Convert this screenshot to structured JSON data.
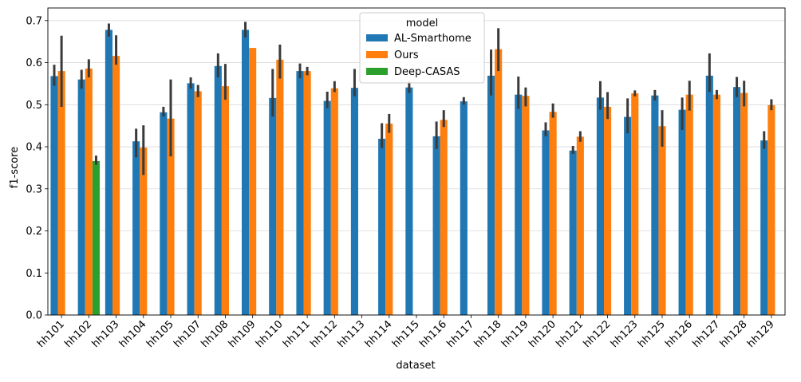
{
  "chart_data": {
    "type": "bar",
    "xlabel": "dataset",
    "ylabel": "f1-score",
    "ylim": [
      0,
      0.73
    ],
    "yticks": [
      "0.0",
      "0.1",
      "0.2",
      "0.3",
      "0.4",
      "0.5",
      "0.6",
      "0.7"
    ],
    "grid": "horizontal",
    "legend_title": "model",
    "legend_position": "top-center",
    "categories": [
      "hh101",
      "hh102",
      "hh103",
      "hh104",
      "hh105",
      "hh107",
      "hh108",
      "hh109",
      "hh110",
      "hh111",
      "hh112",
      "hh113",
      "hh114",
      "hh115",
      "hh116",
      "hh117",
      "hh118",
      "hh119",
      "hh120",
      "hh121",
      "hh122",
      "hh123",
      "hh125",
      "hh126",
      "hh127",
      "hh128",
      "hh129"
    ],
    "series": [
      {
        "name": "AL-Smarthome",
        "color": "#1f77b4",
        "values": [
          0.568,
          0.56,
          0.678,
          0.413,
          0.482,
          0.551,
          0.592,
          0.678,
          0.516,
          0.58,
          0.509,
          0.54,
          0.419,
          0.541,
          0.425,
          0.508,
          0.569,
          0.524,
          0.439,
          0.391,
          0.517,
          0.471,
          0.522,
          0.488,
          0.569,
          0.542,
          0.415
        ],
        "ci_low": [
          0.545,
          0.538,
          0.662,
          0.375,
          0.472,
          0.538,
          0.565,
          0.66,
          0.472,
          0.563,
          0.492,
          0.52,
          0.397,
          0.528,
          0.395,
          0.5,
          0.522,
          0.49,
          0.425,
          0.383,
          0.488,
          0.432,
          0.51,
          0.44,
          0.53,
          0.518,
          0.395
        ],
        "ci_high": [
          0.595,
          0.583,
          0.693,
          0.443,
          0.495,
          0.565,
          0.622,
          0.697,
          0.585,
          0.598,
          0.531,
          0.585,
          0.456,
          0.555,
          0.46,
          0.518,
          0.631,
          0.567,
          0.458,
          0.402,
          0.556,
          0.515,
          0.535,
          0.517,
          0.622,
          0.566,
          0.437
        ]
      },
      {
        "name": "Ours",
        "color": "#ff7f0e",
        "values": [
          0.58,
          0.586,
          0.616,
          0.398,
          0.467,
          0.532,
          0.544,
          0.635,
          0.607,
          0.58,
          0.539,
          null,
          0.455,
          null,
          0.464,
          null,
          0.632,
          0.521,
          0.483,
          0.424,
          0.495,
          0.527,
          0.449,
          0.524,
          0.524,
          0.528,
          0.499
        ],
        "ci_low": [
          0.495,
          0.565,
          0.595,
          0.333,
          0.377,
          0.518,
          0.512,
          0.635,
          0.562,
          0.57,
          0.53,
          null,
          0.433,
          null,
          0.447,
          null,
          0.58,
          0.496,
          0.469,
          0.412,
          0.466,
          0.52,
          0.4,
          0.486,
          0.513,
          0.496,
          0.487
        ],
        "ci_high": [
          0.664,
          0.608,
          0.665,
          0.451,
          0.56,
          0.547,
          0.597,
          0.635,
          0.643,
          0.59,
          0.556,
          null,
          0.478,
          null,
          0.487,
          null,
          0.682,
          0.541,
          0.503,
          0.437,
          0.53,
          0.534,
          0.487,
          0.557,
          0.535,
          0.557,
          0.513
        ]
      },
      {
        "name": "Deep-CASAS",
        "color": "#2ca02c",
        "values": [
          null,
          0.366,
          null,
          null,
          null,
          null,
          null,
          null,
          null,
          null,
          null,
          null,
          null,
          null,
          null,
          null,
          null,
          null,
          null,
          null,
          null,
          null,
          null,
          null,
          null,
          null,
          null
        ],
        "ci_low": [
          null,
          0.357,
          null,
          null,
          null,
          null,
          null,
          null,
          null,
          null,
          null,
          null,
          null,
          null,
          null,
          null,
          null,
          null,
          null,
          null,
          null,
          null,
          null,
          null,
          null,
          null,
          null
        ],
        "ci_high": [
          null,
          0.379,
          null,
          null,
          null,
          null,
          null,
          null,
          null,
          null,
          null,
          null,
          null,
          null,
          null,
          null,
          null,
          null,
          null,
          null,
          null,
          null,
          null,
          null,
          null,
          null,
          null
        ]
      }
    ]
  }
}
